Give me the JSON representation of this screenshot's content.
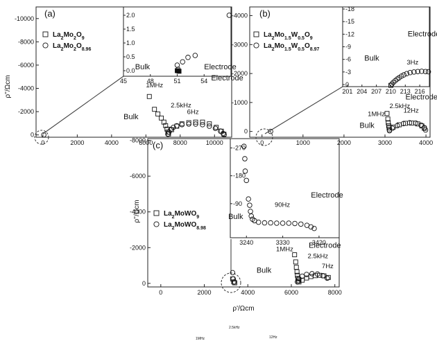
{
  "chart_data": [
    {
      "id": "a",
      "type": "scatter",
      "panel_label": "(a)",
      "ylabel": "ρ''/Ωcm",
      "xlim": [
        -400,
        11000
      ],
      "ylim": [
        200,
        -11000
      ],
      "x_ticks": [
        0,
        2000,
        4000,
        6000,
        8000,
        10000
      ],
      "x_tick_labels": [
        "0",
        "2000",
        "4000",
        "6000",
        "8000",
        "10000"
      ],
      "y_ticks": [
        0,
        -2000,
        -4000,
        -6000,
        -8000,
        -10000
      ],
      "y_tick_labels": [
        "0",
        "-2000",
        "-4000",
        "-6000",
        "-8000",
        "-10000"
      ],
      "legend": [
        "La2Mo2O9",
        "La2Mo2O8.96"
      ],
      "series": [
        {
          "name": "La2Mo2O9",
          "marker": "square",
          "points": [
            [
              6200,
              -3300
            ],
            [
              6500,
              -2200
            ],
            [
              6700,
              -1800
            ],
            [
              6900,
              -1450
            ],
            [
              7050,
              -1100
            ],
            [
              7150,
              -800
            ],
            [
              7230,
              -500
            ],
            [
              7280,
              -250
            ],
            [
              7320,
              -80
            ],
            [
              7500,
              -450
            ],
            [
              7800,
              -750
            ],
            [
              8100,
              -950
            ],
            [
              8500,
              -1050
            ],
            [
              8900,
              -1100
            ],
            [
              9300,
              -1100
            ],
            [
              9700,
              -950
            ],
            [
              10100,
              -650
            ],
            [
              10400,
              -320
            ],
            [
              10550,
              -60
            ]
          ]
        },
        {
          "name": "La2Mo2O8.96",
          "marker": "circle",
          "points": [
            [
              50,
              0
            ],
            [
              7280,
              -60
            ],
            [
              7350,
              -250
            ],
            [
              7450,
              -480
            ],
            [
              7600,
              -650
            ],
            [
              7800,
              -780
            ],
            [
              8100,
              -880
            ],
            [
              8500,
              -930
            ],
            [
              8900,
              -930
            ],
            [
              9300,
              -880
            ],
            [
              9700,
              -750
            ],
            [
              10050,
              -560
            ],
            [
              10350,
              -330
            ],
            [
              10500,
              -120
            ],
            [
              10560,
              -20
            ]
          ]
        }
      ],
      "labels": [
        {
          "text": "1MHz",
          "x": 6000,
          "y": -4100
        },
        {
          "text": "2.5kHz",
          "x": 7450,
          "y": -2350
        },
        {
          "text": "6Hz",
          "x": 8400,
          "y": -1800
        },
        {
          "text": "Electrode",
          "x": 9800,
          "y": -4700
        },
        {
          "text": "Bulk",
          "x": 4700,
          "y": -1350
        }
      ],
      "inset": {
        "xlim": [
          45,
          57
        ],
        "ylim": [
          -0.2,
          2.3
        ],
        "x_ticks": [
          45,
          48,
          51,
          54
        ],
        "x_tick_labels": [
          "45",
          "48",
          "51",
          "54"
        ],
        "y_ticks": [
          0.0,
          0.5,
          1.0,
          1.5,
          2.0
        ],
        "y_tick_labels": [
          "0.0",
          "0.5",
          "1.0",
          "1.5",
          "2.0"
        ],
        "labels": [
          {
            "text": "Bulk",
            "x": 46.3,
            "y": 0.05
          },
          {
            "text": "Electrode",
            "x": 54,
            "y": 0.05
          }
        ],
        "series": [
          {
            "name": "La2Mo2O9",
            "marker": "square-filled",
            "points": [
              [
                51.0,
                0.0
              ],
              [
                51.2,
                -0.02
              ]
            ]
          },
          {
            "name": "La2Mo2O8.96",
            "marker": "circle",
            "points": [
              [
                51.1,
                0.05
              ],
              [
                51.0,
                0.2
              ],
              [
                51.6,
                0.32
              ],
              [
                52.2,
                0.48
              ],
              [
                53.0,
                0.55
              ],
              [
                56.8,
                2.0
              ]
            ]
          }
        ]
      }
    },
    {
      "id": "b",
      "type": "scatter",
      "panel_label": "(b)",
      "ylabel": "",
      "xlim": [
        -300,
        4100
      ],
      "ylim": [
        200,
        -4300
      ],
      "x_ticks": [
        0,
        1000,
        2000,
        3000,
        4000
      ],
      "x_tick_labels": [
        "0",
        "1000",
        "2000",
        "3000",
        "4000"
      ],
      "y_ticks": [
        0,
        -1000,
        -2000,
        -3000,
        -4000
      ],
      "y_tick_labels": [
        "0",
        "-1000",
        "-2000",
        "-3000",
        "-4000"
      ],
      "legend": [
        "La2Mo1.5W0.5O9",
        "La2Mo1.5W0.5O8.97"
      ],
      "series": [
        {
          "name": "La2Mo1.5W0.5O9",
          "marker": "square",
          "points": [
            [
              3050,
              -620
            ],
            [
              3070,
              -430
            ],
            [
              3080,
              -300
            ],
            [
              3090,
              -200
            ],
            [
              3100,
              -120
            ],
            [
              3110,
              -60
            ],
            [
              3200,
              -150
            ],
            [
              3350,
              -230
            ],
            [
              3500,
              -280
            ],
            [
              3650,
              -290
            ],
            [
              3800,
              -260
            ],
            [
              3900,
              -190
            ],
            [
              3960,
              -110
            ]
          ]
        },
        {
          "name": "La2Mo1.5W0.5O8.97",
          "marker": "circle",
          "points": [
            [
              210,
              0
            ],
            [
              3110,
              -25
            ],
            [
              3180,
              -110
            ],
            [
              3300,
              -200
            ],
            [
              3450,
              -270
            ],
            [
              3600,
              -300
            ],
            [
              3750,
              -290
            ],
            [
              3880,
              -220
            ],
            [
              3960,
              -130
            ],
            [
              3990,
              -50
            ]
          ]
        }
      ],
      "labels": [
        {
          "text": "Electrode",
          "x": 3500,
          "y": -1100
        },
        {
          "text": "2.5kHz",
          "x": 3110,
          "y": -800
        },
        {
          "text": "12Hz",
          "x": 3450,
          "y": -650
        },
        {
          "text": "1MHz",
          "x": 2580,
          "y": -530
        },
        {
          "text": "Bulk",
          "x": 2380,
          "y": -120
        }
      ],
      "inset": {
        "xlim": [
          200,
          218
        ],
        "ylim": [
          0.5,
          -18.5
        ],
        "x_ticks": [
          201,
          204,
          207,
          210,
          213,
          216
        ],
        "x_tick_labels": [
          "201",
          "204",
          "207",
          "210",
          "213",
          "216"
        ],
        "y_ticks": [
          0,
          -3,
          -6,
          -9,
          -12,
          -15,
          -18
        ],
        "y_tick_labels": [
          "0",
          "-3",
          "-6",
          "-9",
          "-12",
          "-15",
          "-18"
        ],
        "labels": [
          {
            "text": "Electrode",
            "x": 213.5,
            "y": -11.5
          },
          {
            "text": "Bulk",
            "x": 204.5,
            "y": -5.7
          },
          {
            "text": "3Hz",
            "x": 213.3,
            "y": -4.8
          }
        ],
        "series": [
          {
            "name": "La2Mo1.5W0.5O9",
            "marker": "square",
            "points": [
              [
                210.0,
                0.2
              ]
            ]
          },
          {
            "name": "La2Mo1.5W0.5O8.97",
            "marker": "circle",
            "points": [
              [
                210.2,
                -0.1
              ],
              [
                210.5,
                -0.5
              ],
              [
                210.9,
                -0.9
              ],
              [
                211.3,
                -1.3
              ],
              [
                211.7,
                -1.6
              ],
              [
                212.2,
                -2.0
              ],
              [
                212.7,
                -2.3
              ],
              [
                213.3,
                -2.6
              ],
              [
                214.0,
                -2.85
              ],
              [
                214.8,
                -3.0
              ],
              [
                215.6,
                -3.1
              ],
              [
                216.4,
                -3.15
              ],
              [
                217.2,
                -3.1
              ],
              [
                217.8,
                -3.05
              ]
            ]
          }
        ]
      }
    },
    {
      "id": "c",
      "type": "scatter",
      "panel_label": "(c)",
      "ylabel": "ρ''/Ωcm",
      "xlabel": "ρ'/Ωcm",
      "xlim": [
        -600,
        8200
      ],
      "ylim": [
        200,
        -8100
      ],
      "x_ticks": [
        0,
        2000,
        4000,
        6000,
        8000
      ],
      "x_tick_labels": [
        "0",
        "2000",
        "4000",
        "6000",
        "8000"
      ],
      "y_ticks": [
        0,
        -2000,
        -4000,
        -6000,
        -8000
      ],
      "y_tick_labels": [
        "0",
        "-2000",
        "-4000",
        "-6000",
        "-8000"
      ],
      "legend": [
        "La2MoWO9",
        "La2MoWO8.98"
      ],
      "series": [
        {
          "name": "La2MoWO9",
          "marker": "square",
          "points": [
            [
              3300,
              -250
            ],
            [
              3350,
              -80
            ],
            [
              3400,
              -30
            ],
            [
              6150,
              -1600
            ],
            [
              6200,
              -1200
            ],
            [
              6230,
              -900
            ],
            [
              6260,
              -650
            ],
            [
              6280,
              -450
            ],
            [
              6300,
              -280
            ],
            [
              6320,
              -150
            ],
            [
              6350,
              -80
            ],
            [
              6500,
              -180
            ],
            [
              6700,
              -300
            ],
            [
              6900,
              -380
            ],
            [
              7100,
              -430
            ],
            [
              7300,
              -450
            ],
            [
              7500,
              -420
            ],
            [
              7700,
              -330
            ]
          ]
        },
        {
          "name": "La2MoWO8.98",
          "marker": "circle",
          "points": [
            [
              3300,
              -600
            ],
            [
              3330,
              -250
            ],
            [
              3380,
              -80
            ],
            [
              6280,
              -80
            ],
            [
              6350,
              -260
            ],
            [
              6500,
              -400
            ],
            [
              6700,
              -500
            ],
            [
              6950,
              -540
            ],
            [
              7200,
              -520
            ],
            [
              7450,
              -430
            ],
            [
              7650,
              -290
            ]
          ]
        }
      ],
      "labels": [
        {
          "text": "Electrode",
          "x": 6800,
          "y": -2000
        },
        {
          "text": "1MHz",
          "x": 5300,
          "y": -1800
        },
        {
          "text": "2.5kHz",
          "x": 6750,
          "y": -1400
        },
        {
          "text": "7Hz",
          "x": 7400,
          "y": -850
        },
        {
          "text": "Bulk",
          "x": 4400,
          "y": -600
        }
      ],
      "inset": {
        "xlim": [
          3200,
          3470
        ],
        "ylim": [
          20,
          -300
        ],
        "x_ticks": [
          3240,
          3330,
          3420
        ],
        "x_tick_labels": [
          "3240",
          "3330",
          "3420"
        ],
        "y_ticks": [
          -90,
          -180,
          -270
        ],
        "y_tick_labels": [
          "-90",
          "-180",
          "-270"
        ],
        "labels": [
          {
            "text": "Electrode",
            "x": 3400,
            "y": -110
          },
          {
            "text": "90Hz",
            "x": 3310,
            "y": -80
          },
          {
            "text": "Bulk",
            "x": 3195,
            "y": -40
          }
        ],
        "series": [
          {
            "name": "La2MoWO8.98",
            "marker": "circle",
            "points": [
              [
                3234,
                -275
              ],
              [
                3236,
                -235
              ],
              [
                3237,
                -195
              ],
              [
                3240,
                -165
              ],
              [
                3245,
                -105
              ],
              [
                3248,
                -85
              ],
              [
                3250,
                -65
              ],
              [
                3252,
                -50
              ],
              [
                3255,
                -40
              ],
              [
                3260,
                -35
              ],
              [
                3270,
                -30
              ],
              [
                3285,
                -28
              ],
              [
                3300,
                -28
              ],
              [
                3315,
                -27
              ],
              [
                3330,
                -27
              ],
              [
                3345,
                -27
              ],
              [
                3360,
                -26
              ],
              [
                3375,
                -24
              ],
              [
                3390,
                -20
              ],
              [
                3400,
                -15
              ],
              [
                3408,
                -10
              ]
            ]
          }
        ]
      }
    }
  ],
  "footer_labels": [
    "2.5kHz",
    "1MHz",
    "12Hz"
  ]
}
